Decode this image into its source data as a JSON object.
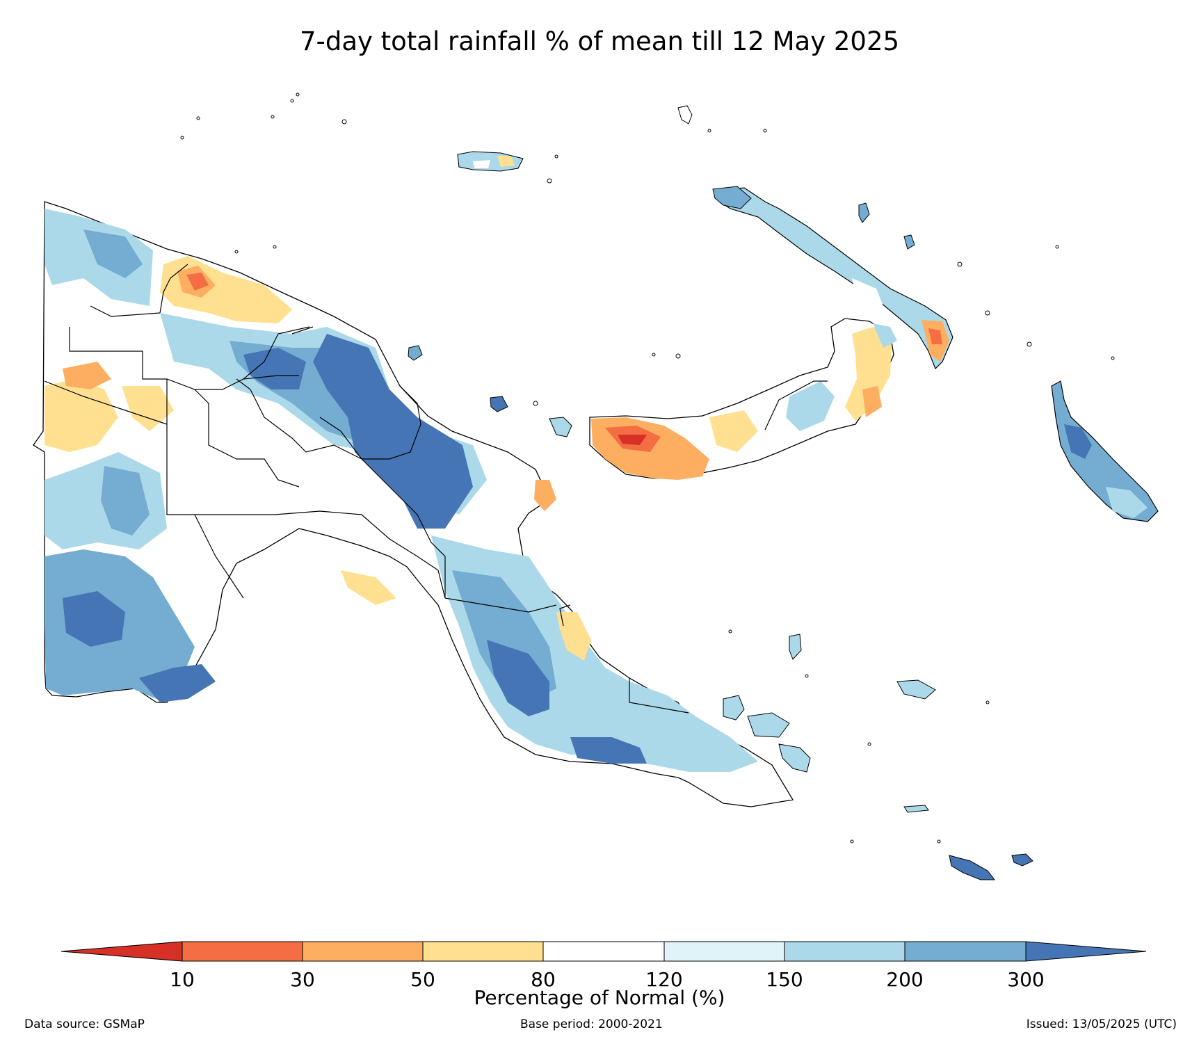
{
  "title": "7-day total rainfall % of mean till 12 May 2025",
  "colorbar": {
    "label": "Percentage of Normal (%)",
    "ticks": [
      "10",
      "30",
      "50",
      "80",
      "120",
      "150",
      "200",
      "300"
    ],
    "colors": {
      "lt10": "#d73027",
      "c10_30": "#f46d43",
      "c30_50": "#fdae61",
      "c50_80": "#fee090",
      "c80_120": "#ffffff",
      "c120_150": "#e0f3f8",
      "c150_200": "#abd9e9",
      "c200_300": "#74add1",
      "gt300": "#4575b4"
    }
  },
  "footer": {
    "source": "Data source: GSMaP",
    "base": "Base period: 2000-2021",
    "issued": "Issued: 13/05/2025 (UTC)"
  }
}
